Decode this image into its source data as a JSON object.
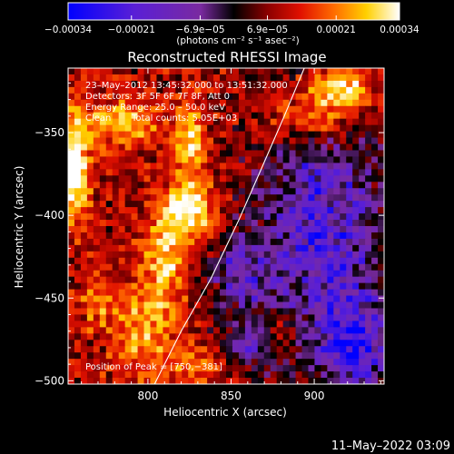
{
  "colorbar": {
    "tick_labels": [
      "−0.00034",
      "−0.00021",
      "−6.9e−05",
      "6.9e−05",
      "0.00021",
      "0.00034"
    ],
    "tick_values": [
      -0.00034,
      -0.00021,
      -6.9e-05,
      6.9e-05,
      0.00021,
      0.00034
    ],
    "range": [
      -0.00034,
      0.00034
    ],
    "unit_label": "(photons cm⁻² s⁻¹ asec⁻²)",
    "colors": [
      "#0000ff",
      "#5a1fd6",
      "#7a2aa0",
      "#000000",
      "#8a0000",
      "#e01000",
      "#ff6a00",
      "#ffd000",
      "#ffffff"
    ]
  },
  "chart_data": {
    "type": "heatmap",
    "title": "Reconstructed RHESSI Image",
    "xlabel": "Heliocentric X (arcsec)",
    "ylabel": "Heliocentric Y (arcsec)",
    "xlim": [
      752,
      942
    ],
    "ylim": [
      -502,
      -311
    ],
    "x_ticks": [
      800,
      850,
      900
    ],
    "y_ticks": [
      -350,
      -400,
      -450,
      -500
    ],
    "x_tick_labels": [
      "800",
      "850",
      "900"
    ],
    "y_tick_labels": [
      "−350",
      "−400",
      "−450",
      "−500"
    ],
    "limb_curve": [
      [
        804,
        -502
      ],
      [
        820,
        -470
      ],
      [
        838,
        -438
      ],
      [
        855,
        -402
      ],
      [
        869,
        -370
      ],
      [
        882,
        -340
      ],
      [
        894,
        -311
      ]
    ],
    "peak_position": [
      750,
      -381
    ],
    "bright_regions": [
      {
        "x": 755,
        "y": -370,
        "sx": 7,
        "sy": 25,
        "amp": 1.05
      },
      {
        "x": 825,
        "y": -398,
        "sx": 10,
        "sy": 12,
        "amp": 0.95
      },
      {
        "x": 810,
        "y": -425,
        "sx": 9,
        "sy": 20,
        "amp": 0.7
      },
      {
        "x": 825,
        "y": -355,
        "sx": 7,
        "sy": 18,
        "amp": 0.7
      },
      {
        "x": 785,
        "y": -345,
        "sx": 14,
        "sy": 10,
        "amp": 0.7
      },
      {
        "x": 900,
        "y": -340,
        "sx": 20,
        "sy": 10,
        "amp": 0.75
      },
      {
        "x": 915,
        "y": -322,
        "sx": 14,
        "sy": 8,
        "amp": 0.95
      },
      {
        "x": 797,
        "y": -470,
        "sx": 14,
        "sy": 20,
        "amp": 0.55
      },
      {
        "x": 880,
        "y": -470,
        "sx": 10,
        "sy": 10,
        "amp": 0.35
      },
      {
        "x": 830,
        "y": -490,
        "sx": 15,
        "sy": 8,
        "amp": 0.4
      },
      {
        "x": 770,
        "y": -450,
        "sx": 8,
        "sy": 12,
        "amp": 0.4
      }
    ],
    "dark_regions": [
      {
        "x": 905,
        "y": -410,
        "sx": 30,
        "sy": 60,
        "amp": 0.8
      },
      {
        "x": 855,
        "y": -435,
        "sx": 12,
        "sy": 15,
        "amp": 0.6
      },
      {
        "x": 925,
        "y": -480,
        "sx": 15,
        "sy": 20,
        "amp": 0.7
      },
      {
        "x": 860,
        "y": -480,
        "sx": 12,
        "sy": 10,
        "amp": 0.6
      }
    ]
  },
  "annotations": {
    "time": "23–May–2012 13:45:32.000 to 13:51:32.000",
    "detectors": "Detectors: 3F 5F 6F 7F 8F, Att 0",
    "energy": "Energy Range: 25.0 – 50.0 keV",
    "clean": "Clean",
    "counts": "Total counts: 5.05E+03",
    "peak": "Position of Peak = [750,−381]"
  },
  "footer": {
    "date": "11–May–2022 03:09"
  }
}
